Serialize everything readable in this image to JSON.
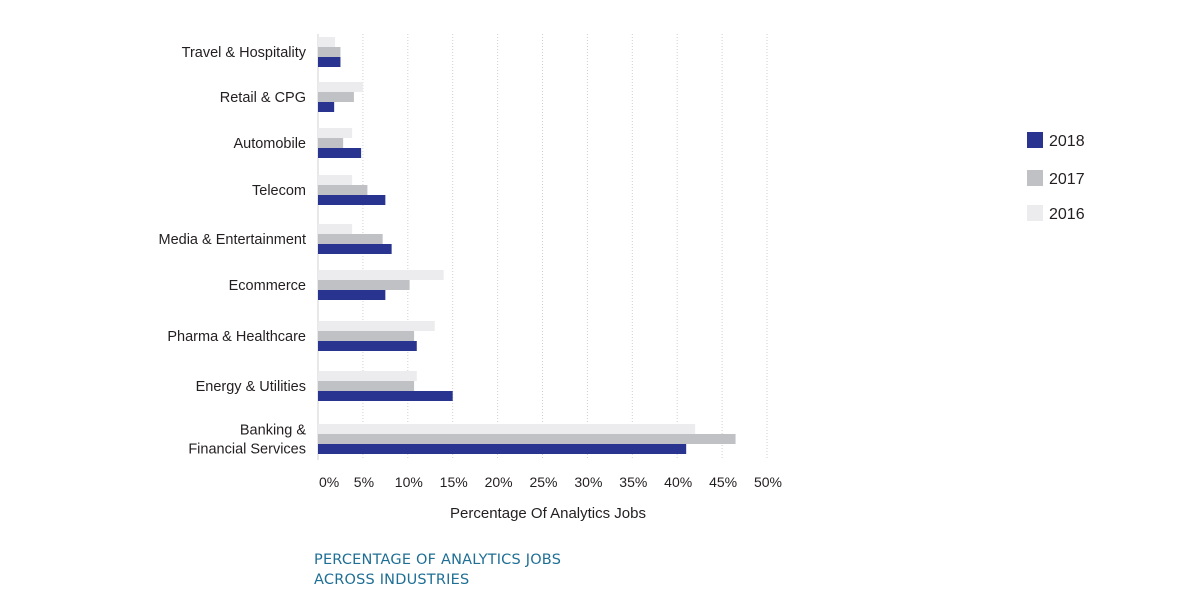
{
  "caption": {
    "line1": "PERCENTAGE OF ANALYTICS JOBS",
    "line2": "ACROSS INDUSTRIES"
  },
  "colors": {
    "2018": "#28348f",
    "2017": "#bfc1c4",
    "2016": "#ececee",
    "grid": "#cfcfcf",
    "text": "#231f20"
  },
  "chart_data": {
    "type": "bar",
    "orientation": "horizontal",
    "categories": [
      [
        "Travel & Hospitality"
      ],
      [
        "Retail &  CPG"
      ],
      [
        "Automobile"
      ],
      [
        "Telecom"
      ],
      [
        "Media & Entertainment"
      ],
      [
        "Ecommerce"
      ],
      [
        "Pharma & Healthcare"
      ],
      [
        "Energy & Utilities"
      ],
      [
        "Banking &",
        "Financial Services"
      ]
    ],
    "series": [
      {
        "name": "2018",
        "color": "#28348f",
        "values": [
          2.5,
          1.8,
          4.8,
          7.5,
          8.2,
          7.5,
          11.0,
          15.0,
          41.0
        ]
      },
      {
        "name": "2017",
        "color": "#bfc1c4",
        "values": [
          2.5,
          4.0,
          2.8,
          5.5,
          7.2,
          10.2,
          10.7,
          10.7,
          46.5
        ]
      },
      {
        "name": "2016",
        "color": "#ececee",
        "values": [
          1.9,
          5.0,
          3.8,
          3.8,
          3.8,
          14.0,
          13.0,
          11.0,
          42.0
        ]
      }
    ],
    "xlim": [
      0,
      50
    ],
    "xticks": [
      "0%",
      "5%",
      "10%",
      "15%",
      "20%",
      "25%",
      "30%",
      "35%",
      "40%",
      "45%",
      "50%"
    ],
    "xlabel": "Percentage Of Analytics Jobs",
    "ylabel": "",
    "title": "",
    "legend": {
      "position": "right",
      "entries": [
        "2018",
        "2017",
        "2016"
      ]
    },
    "grid": "vertical"
  }
}
